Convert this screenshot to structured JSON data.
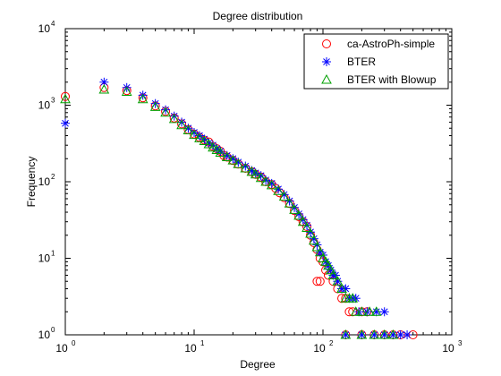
{
  "colors": {
    "background": "#ffffff",
    "axis": "#000000",
    "series_1": "#ff0000",
    "series_2": "#0000ff",
    "series_3": "#00a000"
  },
  "chart_data": {
    "type": "scatter",
    "title": "Degree distribution",
    "xlabel": "Degree",
    "ylabel": "Frequency",
    "xscale": "log",
    "yscale": "log",
    "xlim": [
      1,
      1000
    ],
    "ylim": [
      1,
      10000
    ],
    "grid": false,
    "legend_position": "top-right",
    "x_ticks": [
      {
        "value": 1,
        "base": "10",
        "exp": "0"
      },
      {
        "value": 10,
        "base": "10",
        "exp": "1"
      },
      {
        "value": 100,
        "base": "10",
        "exp": "2"
      },
      {
        "value": 1000,
        "base": "10",
        "exp": "3"
      }
    ],
    "y_ticks": [
      {
        "value": 1,
        "base": "10",
        "exp": "0"
      },
      {
        "value": 10,
        "base": "10",
        "exp": "1"
      },
      {
        "value": 100,
        "base": "10",
        "exp": "2"
      },
      {
        "value": 1000,
        "base": "10",
        "exp": "3"
      },
      {
        "value": 10000,
        "base": "10",
        "exp": "4"
      }
    ],
    "series": [
      {
        "name": "ca-AstroPh-simple",
        "marker": "circle",
        "color": "#ff0000",
        "points": [
          [
            1,
            1300
          ],
          [
            2,
            1700
          ],
          [
            3,
            1550
          ],
          [
            4,
            1250
          ],
          [
            5,
            980
          ],
          [
            6,
            830
          ],
          [
            7,
            680
          ],
          [
            8,
            570
          ],
          [
            9,
            480
          ],
          [
            10,
            420
          ],
          [
            11,
            380
          ],
          [
            12,
            350
          ],
          [
            13,
            330
          ],
          [
            14,
            290
          ],
          [
            15,
            270
          ],
          [
            16,
            250
          ],
          [
            17,
            220
          ],
          [
            18,
            210
          ],
          [
            20,
            190
          ],
          [
            22,
            170
          ],
          [
            25,
            150
          ],
          [
            28,
            135
          ],
          [
            30,
            125
          ],
          [
            33,
            115
          ],
          [
            36,
            100
          ],
          [
            40,
            92
          ],
          [
            43,
            82
          ],
          [
            46,
            72
          ],
          [
            50,
            62
          ],
          [
            55,
            52
          ],
          [
            60,
            42
          ],
          [
            65,
            35
          ],
          [
            70,
            30
          ],
          [
            75,
            26
          ],
          [
            80,
            20
          ],
          [
            85,
            16
          ],
          [
            90,
            13
          ],
          [
            95,
            10
          ],
          [
            100,
            9
          ],
          [
            105,
            7
          ],
          [
            110,
            6
          ],
          [
            90,
            5
          ],
          [
            95,
            5
          ],
          [
            120,
            5
          ],
          [
            130,
            4
          ],
          [
            140,
            3
          ],
          [
            150,
            3
          ],
          [
            160,
            2
          ],
          [
            170,
            2
          ],
          [
            200,
            2
          ],
          [
            220,
            2
          ],
          [
            150,
            1
          ],
          [
            200,
            1
          ],
          [
            250,
            1
          ],
          [
            300,
            1
          ],
          [
            350,
            1
          ],
          [
            400,
            1
          ],
          [
            500,
            1
          ]
        ]
      },
      {
        "name": "BTER",
        "marker": "star",
        "color": "#0000ff",
        "points": [
          [
            1,
            580
          ],
          [
            2,
            2000
          ],
          [
            3,
            1700
          ],
          [
            4,
            1350
          ],
          [
            5,
            1050
          ],
          [
            6,
            870
          ],
          [
            7,
            720
          ],
          [
            8,
            600
          ],
          [
            9,
            500
          ],
          [
            10,
            440
          ],
          [
            11,
            400
          ],
          [
            12,
            360
          ],
          [
            13,
            320
          ],
          [
            14,
            300
          ],
          [
            15,
            270
          ],
          [
            16,
            250
          ],
          [
            18,
            220
          ],
          [
            20,
            200
          ],
          [
            22,
            180
          ],
          [
            25,
            160
          ],
          [
            28,
            140
          ],
          [
            30,
            130
          ],
          [
            33,
            120
          ],
          [
            36,
            105
          ],
          [
            40,
            95
          ],
          [
            45,
            80
          ],
          [
            50,
            68
          ],
          [
            55,
            56
          ],
          [
            60,
            46
          ],
          [
            65,
            38
          ],
          [
            70,
            32
          ],
          [
            75,
            27
          ],
          [
            80,
            22
          ],
          [
            85,
            18
          ],
          [
            90,
            15
          ],
          [
            95,
            12
          ],
          [
            100,
            11
          ],
          [
            105,
            9
          ],
          [
            110,
            8
          ],
          [
            115,
            7
          ],
          [
            120,
            6
          ],
          [
            125,
            6
          ],
          [
            130,
            5
          ],
          [
            140,
            4
          ],
          [
            150,
            4
          ],
          [
            160,
            3
          ],
          [
            170,
            3
          ],
          [
            180,
            3
          ],
          [
            190,
            2
          ],
          [
            220,
            2
          ],
          [
            260,
            2
          ],
          [
            300,
            2
          ],
          [
            150,
            1
          ],
          [
            200,
            1
          ],
          [
            250,
            1
          ],
          [
            300,
            1
          ],
          [
            350,
            1
          ],
          [
            400,
            1
          ],
          [
            450,
            1
          ]
        ]
      },
      {
        "name": "BTER with Blowup",
        "marker": "triangle",
        "color": "#00a000",
        "points": [
          [
            1,
            1200
          ],
          [
            2,
            1600
          ],
          [
            3,
            1500
          ],
          [
            4,
            1200
          ],
          [
            5,
            950
          ],
          [
            6,
            800
          ],
          [
            7,
            660
          ],
          [
            8,
            550
          ],
          [
            9,
            470
          ],
          [
            10,
            410
          ],
          [
            11,
            370
          ],
          [
            12,
            340
          ],
          [
            13,
            310
          ],
          [
            14,
            280
          ],
          [
            15,
            260
          ],
          [
            16,
            240
          ],
          [
            18,
            210
          ],
          [
            20,
            190
          ],
          [
            22,
            170
          ],
          [
            25,
            150
          ],
          [
            28,
            135
          ],
          [
            30,
            125
          ],
          [
            33,
            112
          ],
          [
            36,
            100
          ],
          [
            40,
            90
          ],
          [
            45,
            76
          ],
          [
            50,
            64
          ],
          [
            55,
            52
          ],
          [
            60,
            43
          ],
          [
            65,
            36
          ],
          [
            70,
            30
          ],
          [
            75,
            25
          ],
          [
            80,
            21
          ],
          [
            85,
            17
          ],
          [
            90,
            14
          ],
          [
            95,
            12
          ],
          [
            100,
            10
          ],
          [
            105,
            9
          ],
          [
            110,
            8
          ],
          [
            115,
            7
          ],
          [
            120,
            6
          ],
          [
            130,
            5
          ],
          [
            140,
            4
          ],
          [
            150,
            3
          ],
          [
            160,
            3
          ],
          [
            170,
            3
          ],
          [
            180,
            2
          ],
          [
            200,
            2
          ],
          [
            230,
            2
          ],
          [
            260,
            2
          ],
          [
            150,
            1
          ],
          [
            200,
            1
          ],
          [
            250,
            1
          ],
          [
            300,
            1
          ],
          [
            350,
            1
          ]
        ]
      }
    ]
  }
}
